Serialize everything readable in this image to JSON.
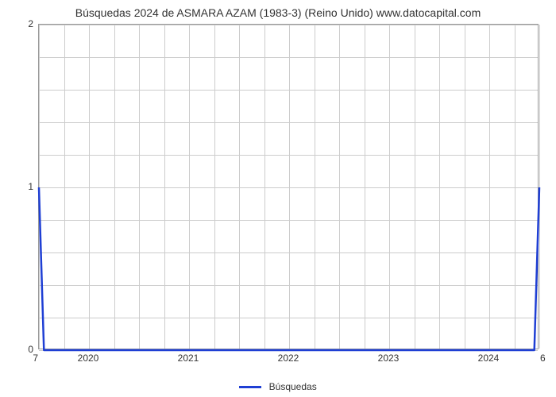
{
  "chart": {
    "type": "line",
    "title": "Búsquedas 2024 de ASMARA AZAM (1983-3) (Reino Unido) www.datocapital.com",
    "title_fontsize": 14,
    "title_color": "#333333",
    "background_color": "#ffffff",
    "plot_border_color": "#999999",
    "grid_color": "#cccccc",
    "xlim": [
      2019.5,
      2024.5
    ],
    "ylim": [
      0,
      2
    ],
    "x_ticks": [
      2020,
      2021,
      2022,
      2023,
      2024
    ],
    "x_tick_labels": [
      "2020",
      "2021",
      "2022",
      "2023",
      "2024"
    ],
    "x_minor_per_major": 4,
    "y_major_ticks": [
      0,
      1,
      2
    ],
    "y_tick_labels": [
      "0",
      "1",
      "2"
    ],
    "y_minor_per_major": 5,
    "series": {
      "label": "Búsquedas",
      "color": "#1f3fd4",
      "line_width": 2.5,
      "x": [
        2019.5,
        2019.55,
        2024.45,
        2024.5
      ],
      "y": [
        1,
        0,
        0,
        1
      ]
    },
    "corner_left_label": "7",
    "corner_right_label": "6",
    "legend_position": "bottom-center",
    "label_fontsize": 12,
    "label_color": "#333333"
  }
}
